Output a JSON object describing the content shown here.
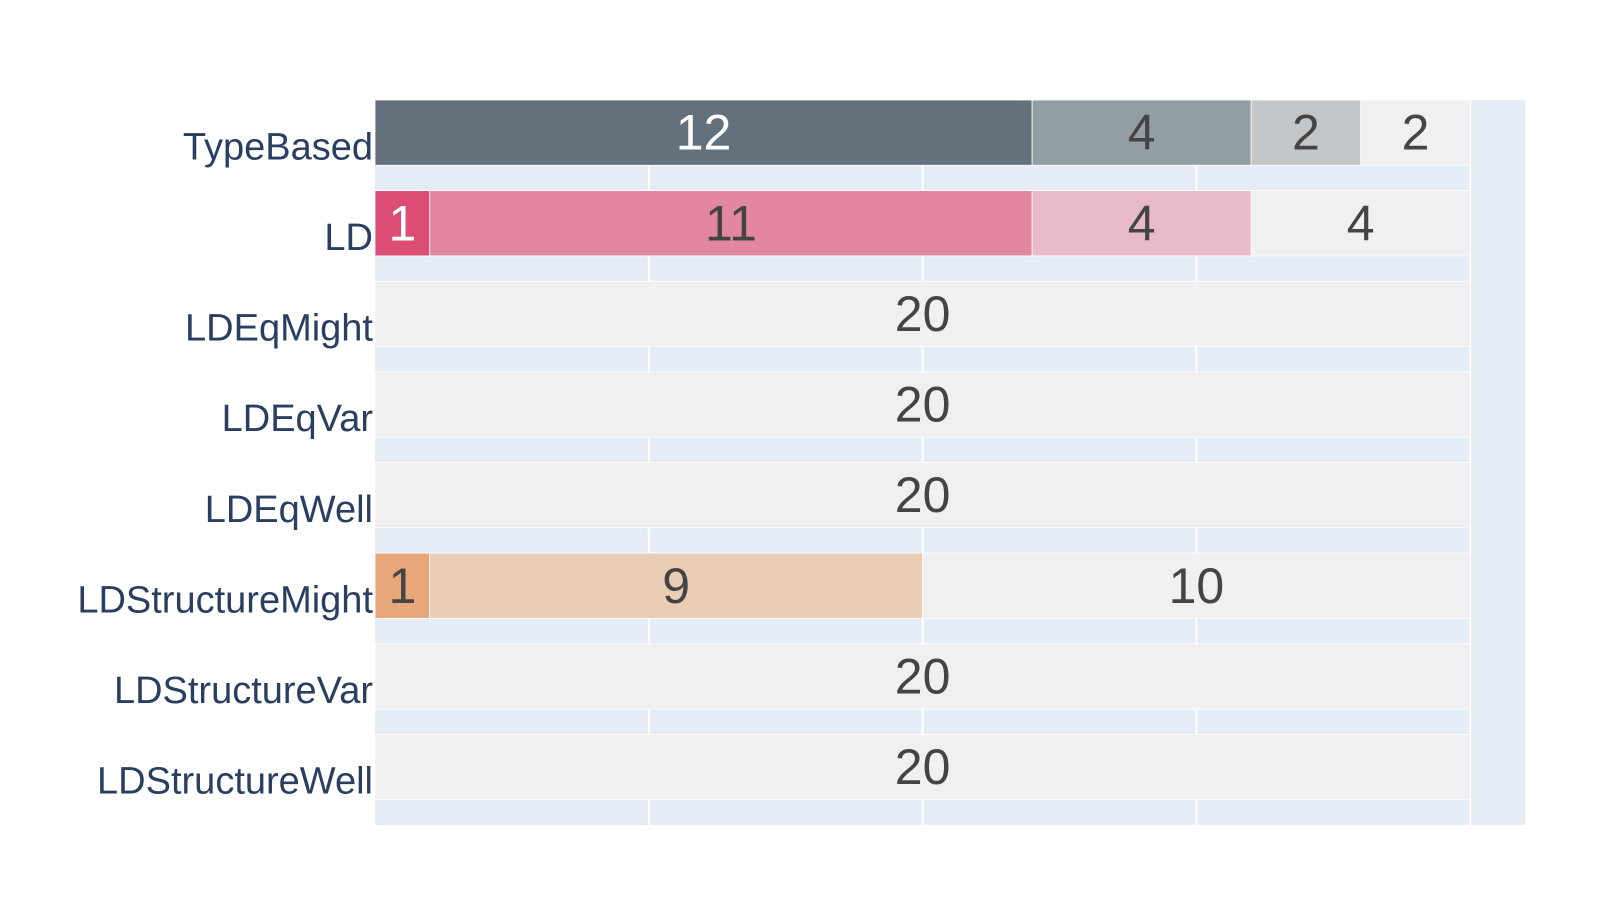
{
  "chart_data": {
    "type": "bar",
    "orientation": "horizontal",
    "barmode": "stack",
    "xlim": [
      0,
      21
    ],
    "x_gridlines": [
      5,
      10,
      15,
      20
    ],
    "grid": true,
    "show_x_ticks": false,
    "plot_background": "#e5ecf6",
    "categories": [
      "TypeBased",
      "LD",
      "LDEqMight",
      "LDEqVar",
      "LDEqWell",
      "LDStructureMight",
      "LDStructureVar",
      "LDStructureWell"
    ],
    "rows": [
      {
        "category": "TypeBased",
        "segments": [
          {
            "value": 12,
            "label": "12",
            "color": "#63717d",
            "text_color": "#ffffff"
          },
          {
            "value": 4,
            "label": "4",
            "color": "#929da4",
            "text_color": "#444444"
          },
          {
            "value": 2,
            "label": "2",
            "color": "#c2c6c9",
            "text_color": "#444444"
          },
          {
            "value": 2,
            "label": "2",
            "color": "#eff0ef",
            "text_color": "#444444"
          }
        ]
      },
      {
        "category": "LD",
        "segments": [
          {
            "value": 1,
            "label": "1",
            "color": "#dc4d75",
            "text_color": "#ffffff"
          },
          {
            "value": 11,
            "label": "11",
            "color": "#e3869f",
            "text_color": "#444444"
          },
          {
            "value": 4,
            "label": "4",
            "color": "#e9bac8",
            "text_color": "#444444"
          },
          {
            "value": 4,
            "label": "4",
            "color": "#eff0ef",
            "text_color": "#444444"
          }
        ]
      },
      {
        "category": "LDEqMight",
        "segments": [
          {
            "value": 20,
            "label": "20",
            "color": "#eff0ef",
            "text_color": "#444444"
          }
        ]
      },
      {
        "category": "LDEqVar",
        "segments": [
          {
            "value": 20,
            "label": "20",
            "color": "#eff0ef",
            "text_color": "#444444"
          }
        ]
      },
      {
        "category": "LDEqWell",
        "segments": [
          {
            "value": 20,
            "label": "20",
            "color": "#eff0ef",
            "text_color": "#444444"
          }
        ]
      },
      {
        "category": "LDStructureMight",
        "segments": [
          {
            "value": 1,
            "label": "1",
            "color": "#e8a778",
            "text_color": "#444444"
          },
          {
            "value": 9,
            "label": "9",
            "color": "#eacdb5",
            "text_color": "#444444"
          },
          {
            "value": 10,
            "label": "10",
            "color": "#eff0ef",
            "text_color": "#444444"
          }
        ]
      },
      {
        "category": "LDStructureVar",
        "segments": [
          {
            "value": 20,
            "label": "20",
            "color": "#eff0ef",
            "text_color": "#444444"
          }
        ]
      },
      {
        "category": "LDStructureWell",
        "segments": [
          {
            "value": 20,
            "label": "20",
            "color": "#eff0ef",
            "text_color": "#444444"
          }
        ]
      }
    ]
  }
}
